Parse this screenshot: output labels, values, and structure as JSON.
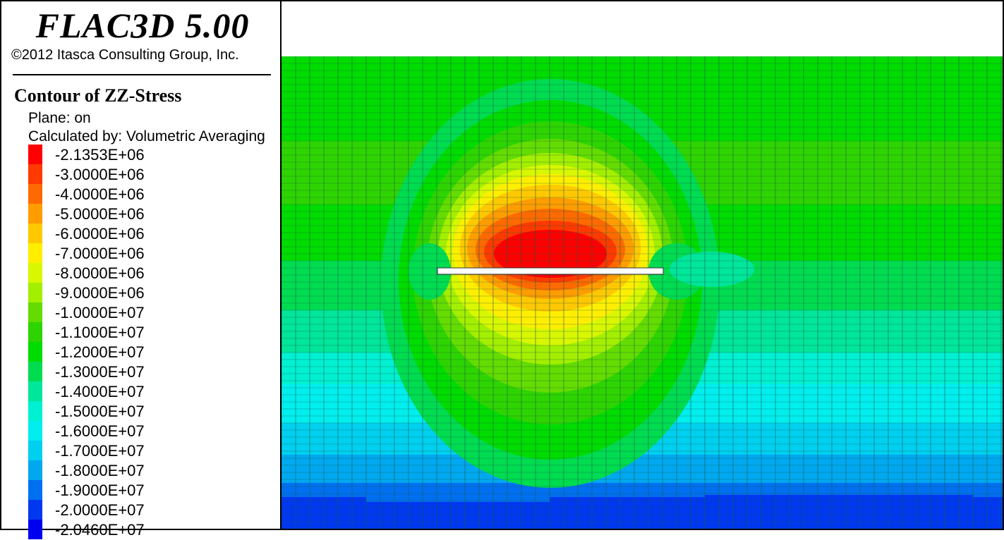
{
  "header": {
    "app_title": "FLAC3D 5.00",
    "copyright": "©2012 Itasca Consulting Group, Inc."
  },
  "legend": {
    "title": "Contour of ZZ-Stress",
    "plane": "Plane: on",
    "calculated_by": "Calculated by: Volumetric Averaging",
    "items": [
      {
        "label": "-2.1353E+06",
        "color": "#ff0000"
      },
      {
        "label": "-3.0000E+06",
        "color": "#ff3a00"
      },
      {
        "label": "-4.0000E+06",
        "color": "#ff6a00"
      },
      {
        "label": "-5.0000E+06",
        "color": "#ff9c00"
      },
      {
        "label": "-6.0000E+06",
        "color": "#ffc800"
      },
      {
        "label": "-7.0000E+06",
        "color": "#ffee00"
      },
      {
        "label": "-8.0000E+06",
        "color": "#d8f700"
      },
      {
        "label": "-9.0000E+06",
        "color": "#a4ee00"
      },
      {
        "label": "-1.0000E+07",
        "color": "#64dc00"
      },
      {
        "label": "-1.1000E+07",
        "color": "#2ed400"
      },
      {
        "label": "-1.2000E+07",
        "color": "#00dc00"
      },
      {
        "label": "-1.3000E+07",
        "color": "#00dc50"
      },
      {
        "label": "-1.4000E+07",
        "color": "#00e69a"
      },
      {
        "label": "-1.5000E+07",
        "color": "#00f0d2"
      },
      {
        "label": "-1.6000E+07",
        "color": "#00eeee"
      },
      {
        "label": "-1.7000E+07",
        "color": "#00d0f0"
      },
      {
        "label": "-1.8000E+07",
        "color": "#00a8f0"
      },
      {
        "label": "-1.9000E+07",
        "color": "#0070f0"
      },
      {
        "label": "-2.0000E+07",
        "color": "#0038f0"
      },
      {
        "label": "-2.0460E+07",
        "color": "#0000f0"
      }
    ]
  },
  "plot": {
    "background_color": "#ffffff",
    "grid_color": "#1a5a4a",
    "excavation_color": "#ffffff"
  }
}
